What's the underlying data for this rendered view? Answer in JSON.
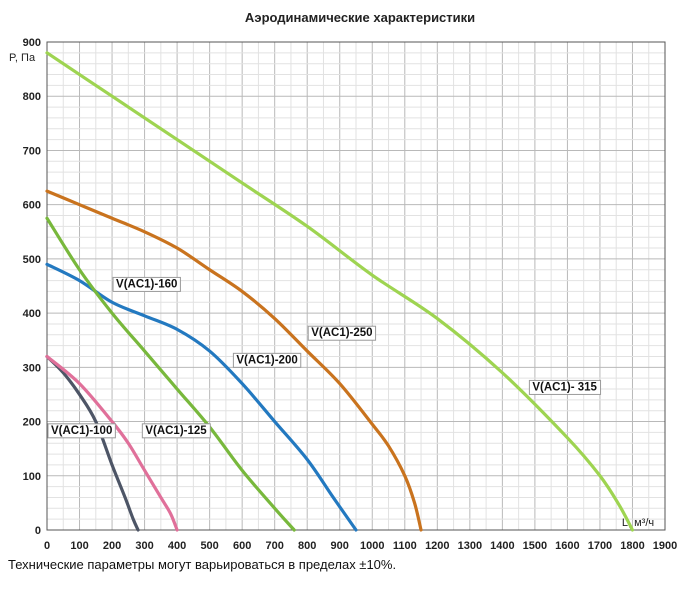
{
  "chart_data": {
    "type": "line",
    "title": "Аэродинамические характеристики",
    "ylabel": "P, Па",
    "xlabel": "L, м³/ч",
    "xlim": [
      0,
      1900
    ],
    "ylim": [
      0,
      900
    ],
    "x_ticks": [
      0,
      100,
      200,
      300,
      400,
      500,
      600,
      700,
      800,
      900,
      1000,
      1100,
      1200,
      1300,
      1400,
      1500,
      1600,
      1700,
      1800,
      1900
    ],
    "y_ticks": [
      0,
      100,
      200,
      300,
      400,
      500,
      600,
      700,
      800,
      900
    ],
    "grid": true,
    "series": [
      {
        "name": "V(AC1)-100",
        "color": "#4d5566",
        "x": [
          0,
          50,
          100,
          150,
          200,
          240,
          265,
          280
        ],
        "y": [
          320,
          290,
          250,
          200,
          120,
          60,
          20,
          0
        ]
      },
      {
        "name": "V(AC1)-125",
        "color": "#e0709a",
        "x": [
          0,
          100,
          200,
          250,
          300,
          350,
          380,
          400
        ],
        "y": [
          320,
          270,
          200,
          160,
          110,
          60,
          30,
          0
        ]
      },
      {
        "name": "V(AC1)-160",
        "color": "#2379c0",
        "x": [
          0,
          100,
          200,
          300,
          400,
          500,
          600,
          700,
          800,
          880,
          950
        ],
        "y": [
          490,
          460,
          420,
          395,
          370,
          330,
          270,
          200,
          130,
          60,
          0
        ]
      },
      {
        "name": "V(AC1)-200",
        "color": "#78b83c",
        "x": [
          0,
          100,
          200,
          300,
          400,
          500,
          600,
          700,
          760
        ],
        "y": [
          575,
          480,
          400,
          330,
          260,
          190,
          110,
          40,
          0
        ]
      },
      {
        "name": "V(AC1)-250",
        "color": "#c9731e",
        "x": [
          0,
          100,
          200,
          300,
          400,
          500,
          600,
          700,
          800,
          900,
          1000,
          1050,
          1100,
          1130,
          1150
        ],
        "y": [
          625,
          600,
          575,
          550,
          520,
          480,
          440,
          390,
          330,
          270,
          195,
          155,
          100,
          50,
          0
        ]
      },
      {
        "name": "V(AC1)- 315",
        "color": "#9ed451",
        "x": [
          0,
          200,
          400,
          600,
          800,
          1000,
          1200,
          1400,
          1600,
          1700,
          1760,
          1800
        ],
        "y": [
          880,
          800,
          720,
          640,
          560,
          470,
          390,
          290,
          170,
          100,
          45,
          0
        ]
      }
    ],
    "labels": [
      {
        "text": "V(AC1)-100",
        "x": 0,
        "y": 170
      },
      {
        "text": "V(AC1)-125",
        "x": 290,
        "y": 170
      },
      {
        "text": "V(AC1)-160",
        "x": 200,
        "y": 440
      },
      {
        "text": "V(AC1)-200",
        "x": 570,
        "y": 300
      },
      {
        "text": "V(AC1)-250",
        "x": 800,
        "y": 350
      },
      {
        "text": "V(AC1)- 315",
        "x": 1480,
        "y": 250
      }
    ]
  },
  "footnote": "Технические параметры могут варьироваться в пределах ±10%."
}
